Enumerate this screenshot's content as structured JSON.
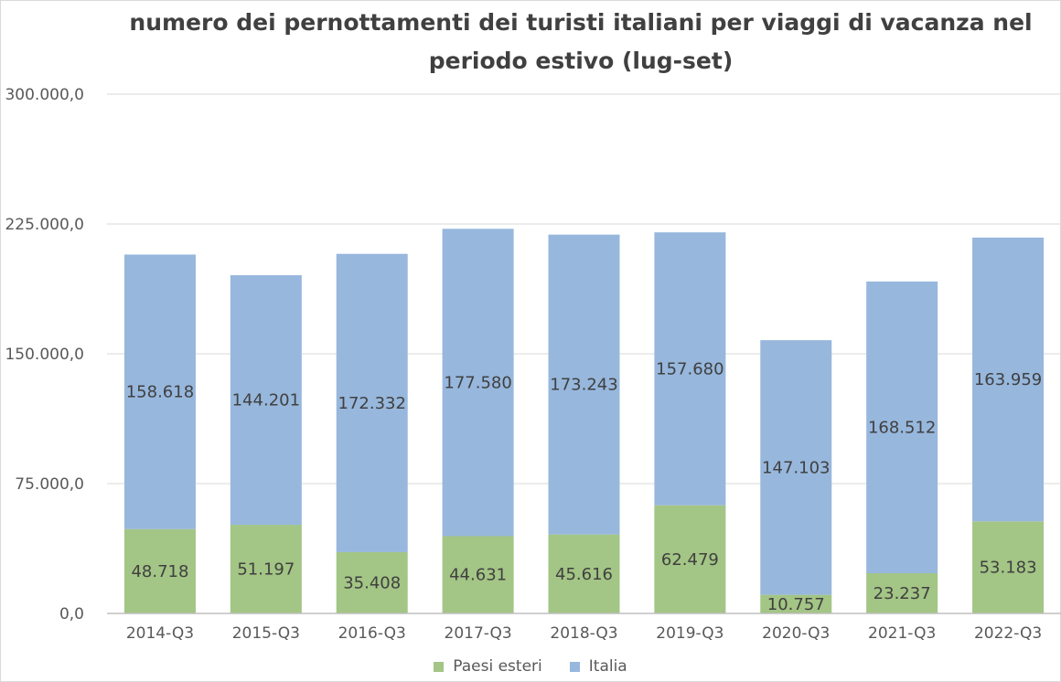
{
  "chart_data": {
    "type": "bar",
    "stacked": true,
    "title": "numero dei pernottamenti dei turisti italiani per viaggi di vacanza nel periodo estivo (lug-set)",
    "xlabel": "",
    "ylabel": "",
    "ylim": [
      0,
      300000
    ],
    "yticks": [
      "0,0",
      "75.000,0",
      "150.000,0",
      "225.000,0",
      "300.000,0"
    ],
    "ytick_values": [
      0,
      75000,
      150000,
      225000,
      300000
    ],
    "grid": true,
    "legend_position": "bottom",
    "categories": [
      "2014-Q3",
      "2015-Q3",
      "2016-Q3",
      "2017-Q3",
      "2018-Q3",
      "2019-Q3",
      "2020-Q3",
      "2021-Q3",
      "2022-Q3"
    ],
    "series": [
      {
        "name": "Paesi esteri",
        "color": "#a3c585",
        "values": [
          48718,
          51197,
          35408,
          44631,
          45616,
          62479,
          10757,
          23237,
          53183
        ],
        "labels": [
          "48.718",
          "51.197",
          "35.408",
          "44.631",
          "45.616",
          "62.479",
          "10.757",
          "23.237",
          "53.183"
        ]
      },
      {
        "name": "Italia",
        "color": "#97b7dd",
        "values": [
          158618,
          144201,
          172332,
          177580,
          173243,
          157680,
          147103,
          168512,
          163959
        ],
        "labels": [
          "158.618",
          "144.201",
          "172.332",
          "177.580",
          "173.243",
          "157.680",
          "147.103",
          "168.512",
          "163.959"
        ]
      }
    ]
  }
}
